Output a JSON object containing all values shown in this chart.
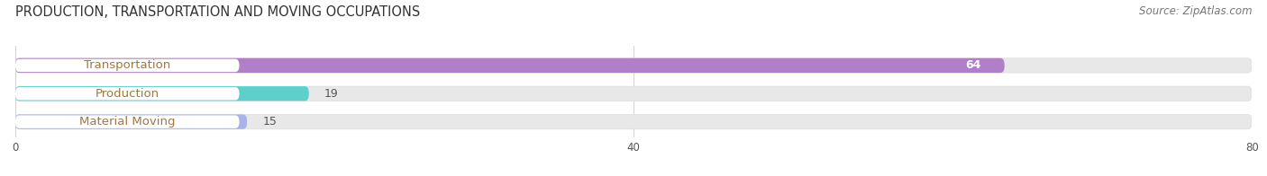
{
  "title": "PRODUCTION, TRANSPORTATION AND MOVING OCCUPATIONS",
  "source": "Source: ZipAtlas.com",
  "categories": [
    "Transportation",
    "Production",
    "Material Moving"
  ],
  "values": [
    64,
    19,
    15
  ],
  "bar_colors": [
    "#b07fc7",
    "#5ecfca",
    "#a8b4e8"
  ],
  "bar_bg_color": "#e8e8e8",
  "xlim": [
    0,
    80
  ],
  "xticks": [
    0,
    40,
    80
  ],
  "title_fontsize": 10.5,
  "label_fontsize": 9.5,
  "value_fontsize": 9,
  "source_fontsize": 8.5,
  "background_color": "#ffffff",
  "label_text_color": "#a07840",
  "value_text_color_on_bar": "#ffffff",
  "value_text_color_off_bar": "#555555"
}
